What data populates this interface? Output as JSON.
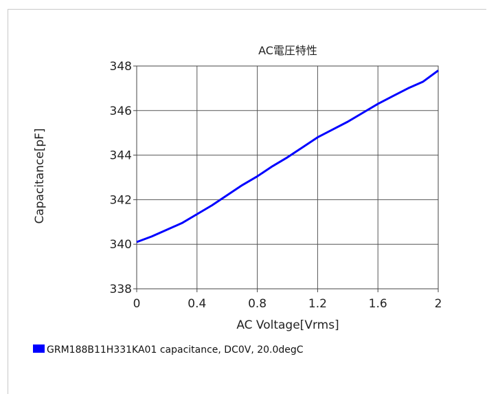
{
  "chart_data": {
    "type": "line",
    "title": "AC電圧特性",
    "xlabel": "AC Voltage[Vrms]",
    "ylabel": "Capacitance[pF]",
    "xlim": [
      0,
      2
    ],
    "ylim": [
      338,
      348
    ],
    "x_ticks": [
      0,
      0.4,
      0.8,
      1.2,
      1.6,
      2
    ],
    "x_tick_labels": [
      "0",
      "0.4",
      "0.8",
      "1.2",
      "1.6",
      "2"
    ],
    "y_ticks": [
      338,
      340,
      342,
      344,
      346,
      348
    ],
    "y_tick_labels": [
      "338",
      "340",
      "342",
      "344",
      "346",
      "348"
    ],
    "grid": true,
    "legend_position": "bottom-left",
    "series": [
      {
        "name": "GRM188B11H331KA01 capacitance, DC0V, 20.0degC",
        "color": "#0000ff",
        "x": [
          0,
          0.1,
          0.2,
          0.3,
          0.4,
          0.5,
          0.6,
          0.7,
          0.8,
          0.9,
          1.0,
          1.1,
          1.2,
          1.3,
          1.4,
          1.5,
          1.6,
          1.7,
          1.8,
          1.9,
          2.0
        ],
        "y": [
          340.1,
          340.35,
          340.65,
          340.95,
          341.35,
          341.75,
          342.2,
          342.65,
          343.05,
          343.5,
          343.9,
          344.35,
          344.8,
          345.15,
          345.5,
          345.9,
          346.3,
          346.65,
          347.0,
          347.3,
          347.8
        ]
      }
    ]
  }
}
